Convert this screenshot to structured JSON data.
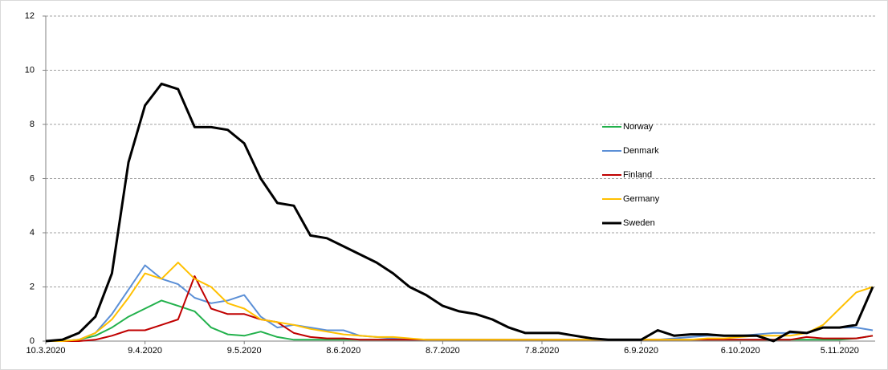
{
  "chart_data": {
    "type": "line",
    "categories": [
      "10.3.2020",
      null,
      null,
      null,
      null,
      null,
      "9.4.2020",
      null,
      null,
      null,
      null,
      null,
      "9.5.2020",
      null,
      null,
      null,
      null,
      null,
      "8.6.2020",
      null,
      null,
      null,
      null,
      null,
      "8.7.2020",
      null,
      null,
      null,
      null,
      null,
      "7.8.2020",
      null,
      null,
      null,
      null,
      null,
      "6.9.2020",
      null,
      null,
      null,
      null,
      null,
      "6.10.2020",
      null,
      null,
      null,
      null,
      null,
      "5.11.2020",
      null,
      null
    ],
    "ylim": [
      0,
      12
    ],
    "yticks": [
      0,
      2,
      4,
      6,
      8,
      10,
      12
    ],
    "grid": true,
    "series": [
      {
        "name": "Norway",
        "color": "#22b14c",
        "values": [
          0,
          0,
          0.05,
          0.2,
          0.5,
          0.9,
          1.2,
          1.5,
          1.3,
          1.1,
          0.5,
          0.25,
          0.2,
          0.35,
          0.15,
          0.05,
          0.05,
          0.05,
          0.05,
          0.05,
          0.05,
          0.05,
          0.05,
          0.05,
          0.05,
          0.05,
          0.05,
          0.05,
          0.05,
          0.05,
          0.05,
          0.05,
          0.05,
          0.05,
          0.05,
          0.05,
          0.05,
          0.05,
          0.05,
          0.05,
          0.05,
          0.05,
          0.05,
          0.05,
          0.05,
          0.05,
          0.05,
          0.05,
          0.05,
          0.1,
          0.2
        ]
      },
      {
        "name": "Denmark",
        "color": "#5b8fd6",
        "values": [
          0,
          0,
          0.05,
          0.3,
          1.0,
          1.9,
          2.8,
          2.3,
          2.1,
          1.6,
          1.4,
          1.5,
          1.7,
          0.9,
          0.5,
          0.6,
          0.5,
          0.4,
          0.4,
          0.2,
          0.15,
          0.1,
          0.05,
          0.05,
          0.05,
          0.05,
          0.05,
          0.05,
          0.05,
          0.05,
          0.05,
          0.05,
          0.05,
          0.05,
          0.05,
          0.05,
          0.05,
          0.05,
          0.1,
          0.15,
          0.2,
          0.2,
          0.2,
          0.25,
          0.3,
          0.3,
          0.3,
          0.5,
          0.5,
          0.5,
          0.4
        ]
      },
      {
        "name": "Finland",
        "color": "#c00000",
        "values": [
          0,
          0,
          0,
          0.05,
          0.2,
          0.4,
          0.4,
          0.6,
          0.8,
          2.4,
          1.2,
          1.0,
          1.0,
          0.8,
          0.7,
          0.3,
          0.15,
          0.1,
          0.1,
          0.05,
          0.05,
          0.05,
          0.05,
          0.05,
          0.05,
          0.05,
          0.05,
          0.05,
          0.05,
          0.05,
          0.05,
          0.05,
          0.05,
          0.05,
          0.05,
          0.05,
          0.05,
          0.05,
          0.05,
          0.05,
          0.05,
          0.05,
          0.05,
          0.05,
          0.05,
          0.05,
          0.15,
          0.1,
          0.1,
          0.1,
          0.2
        ]
      },
      {
        "name": "Germany",
        "color": "#ffc000",
        "values": [
          0,
          0,
          0.05,
          0.3,
          0.8,
          1.6,
          2.5,
          2.3,
          2.9,
          2.3,
          2.0,
          1.4,
          1.2,
          0.8,
          0.7,
          0.6,
          0.45,
          0.35,
          0.25,
          0.2,
          0.15,
          0.15,
          0.1,
          0.05,
          0.05,
          0.05,
          0.05,
          0.05,
          0.05,
          0.05,
          0.05,
          0.05,
          0.05,
          0.05,
          0.05,
          0.05,
          0.05,
          0.05,
          0.05,
          0.05,
          0.1,
          0.1,
          0.15,
          0.2,
          0.2,
          0.2,
          0.3,
          0.6,
          1.2,
          1.8,
          2.0
        ]
      },
      {
        "name": "Sweden",
        "color": "#000000",
        "values": [
          0,
          0.05,
          0.3,
          0.9,
          2.5,
          6.6,
          8.7,
          9.5,
          9.3,
          7.9,
          7.9,
          7.8,
          7.3,
          6.0,
          5.1,
          5.0,
          3.9,
          3.8,
          3.5,
          3.2,
          2.9,
          2.5,
          2.0,
          1.7,
          1.3,
          1.1,
          1.0,
          0.8,
          0.5,
          0.3,
          0.3,
          0.3,
          0.2,
          0.1,
          0.05,
          0.05,
          0.05,
          0.4,
          0.2,
          0.25,
          0.25,
          0.2,
          0.2,
          0.2,
          0,
          0.35,
          0.3,
          0.5,
          0.5,
          0.6,
          2.0
        ]
      }
    ]
  }
}
